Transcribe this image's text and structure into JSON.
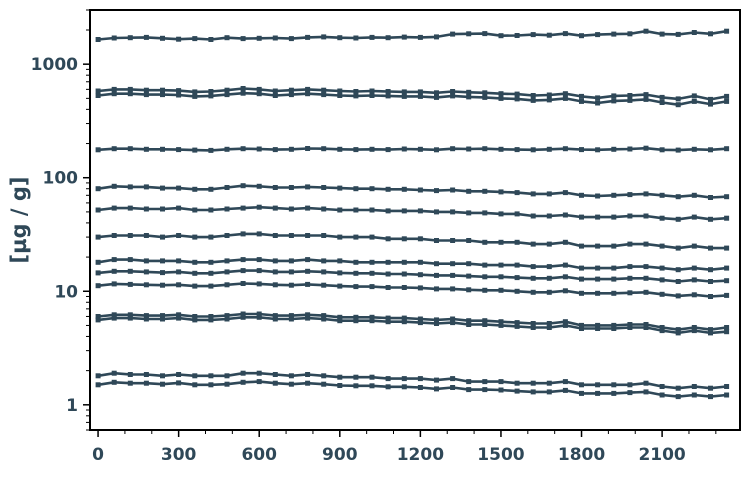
{
  "chart_data": {
    "type": "line",
    "ylabel": "[µg / g]",
    "xlabel": "",
    "title": "",
    "y_scale": "log",
    "xlim": [
      -30,
      2390
    ],
    "ylim": [
      0.6,
      3000
    ],
    "xticks": [
      0,
      300,
      600,
      900,
      1200,
      1500,
      1800,
      2100
    ],
    "yticks": [
      1,
      10,
      100,
      1000
    ],
    "grid": false,
    "legend": "none",
    "colors": {
      "series": "#2f4858",
      "axis": "#000000",
      "text": "#2f4858"
    },
    "x": [
      0,
      60,
      120,
      180,
      240,
      300,
      360,
      420,
      480,
      540,
      600,
      660,
      720,
      780,
      840,
      900,
      960,
      1020,
      1080,
      1140,
      1200,
      1260,
      1320,
      1380,
      1440,
      1500,
      1560,
      1620,
      1680,
      1740,
      1800,
      1860,
      1920,
      1980,
      2040,
      2100,
      2160,
      2220,
      2280,
      2340
    ],
    "series": [
      {
        "values": [
          1650,
          1700,
          1710,
          1720,
          1690,
          1660,
          1680,
          1650,
          1710,
          1680,
          1690,
          1700,
          1680,
          1720,
          1740,
          1710,
          1700,
          1720,
          1710,
          1730,
          1720,
          1740,
          1840,
          1850,
          1860,
          1780,
          1790,
          1820,
          1800,
          1860,
          1780,
          1820,
          1840,
          1850,
          1950,
          1840,
          1830,
          1900,
          1850,
          1950
        ]
      },
      {
        "values": [
          580,
          600,
          600,
          590,
          590,
          585,
          570,
          575,
          590,
          610,
          600,
          580,
          590,
          600,
          590,
          580,
          575,
          580,
          575,
          570,
          570,
          560,
          575,
          565,
          560,
          550,
          545,
          530,
          535,
          550,
          520,
          505,
          525,
          530,
          540,
          510,
          495,
          525,
          490,
          520
        ]
      },
      {
        "values": [
          530,
          550,
          550,
          540,
          540,
          535,
          520,
          525,
          540,
          555,
          550,
          530,
          540,
          550,
          540,
          530,
          525,
          530,
          525,
          520,
          520,
          510,
          525,
          515,
          510,
          500,
          495,
          480,
          485,
          500,
          470,
          455,
          475,
          480,
          490,
          460,
          440,
          470,
          445,
          470
        ]
      },
      {
        "values": [
          176,
          180,
          180,
          178,
          178,
          177,
          175,
          174,
          178,
          180,
          179,
          177,
          178,
          181,
          180,
          178,
          177,
          178,
          177,
          179,
          178,
          176,
          180,
          179,
          180,
          178,
          177,
          176,
          178,
          180,
          177,
          176,
          178,
          179,
          182,
          176,
          175,
          178,
          176,
          180
        ]
      },
      {
        "values": [
          80,
          84,
          83,
          83,
          81,
          81,
          79,
          79,
          82,
          85,
          84,
          82,
          82,
          83,
          82,
          81,
          80,
          80,
          79,
          79,
          78,
          77,
          78,
          76,
          76,
          75,
          74,
          72,
          72,
          74,
          70,
          69,
          70,
          71,
          72,
          70,
          68,
          70,
          67,
          68
        ]
      },
      {
        "values": [
          52,
          54,
          54,
          53,
          53,
          54,
          52,
          52,
          53,
          54,
          55,
          54,
          53,
          54,
          53,
          52,
          52,
          52,
          51,
          51,
          51,
          50,
          50,
          49,
          49,
          48,
          48,
          46,
          46,
          47,
          45,
          45,
          45,
          46,
          46,
          44,
          43,
          45,
          43,
          44
        ]
      },
      {
        "values": [
          30,
          31,
          31,
          31,
          30,
          31,
          30,
          30,
          31,
          32,
          32,
          31,
          31,
          31,
          31,
          30,
          30,
          30,
          29,
          29,
          29,
          28,
          28,
          28,
          27,
          27,
          27,
          26,
          26,
          27,
          25,
          25,
          25,
          26,
          26,
          25,
          24,
          25,
          24,
          24
        ]
      },
      {
        "values": [
          18,
          19,
          19,
          18.5,
          18.5,
          18.5,
          18,
          18,
          18.5,
          19,
          19,
          18.5,
          18.5,
          19,
          18.5,
          18.5,
          18,
          18,
          18,
          18,
          18,
          17.5,
          17.5,
          17.5,
          17,
          17,
          17,
          16.5,
          16.5,
          17,
          16,
          16,
          16,
          16.5,
          16.5,
          16,
          15.5,
          16,
          15.5,
          16
        ]
      },
      {
        "values": [
          14.5,
          15,
          15,
          14.8,
          14.6,
          14.8,
          14.4,
          14.4,
          14.8,
          15.2,
          15.2,
          14.8,
          14.8,
          15,
          14.8,
          14.5,
          14.4,
          14.4,
          14.2,
          14.2,
          14,
          13.8,
          13.8,
          13.6,
          13.4,
          13.4,
          13.2,
          13,
          13,
          13.4,
          12.8,
          12.8,
          12.8,
          13,
          13,
          12.6,
          12.2,
          12.6,
          12.2,
          12.4
        ]
      },
      {
        "values": [
          11.2,
          11.6,
          11.5,
          11.4,
          11.3,
          11.4,
          11.1,
          11.1,
          11.4,
          11.7,
          11.6,
          11.4,
          11.3,
          11.5,
          11.3,
          11.1,
          11,
          11,
          10.8,
          10.8,
          10.7,
          10.5,
          10.5,
          10.3,
          10.2,
          10.2,
          10,
          9.8,
          9.8,
          10.1,
          9.6,
          9.6,
          9.6,
          9.7,
          9.8,
          9.4,
          9.1,
          9.3,
          9,
          9.2
        ]
      },
      {
        "values": [
          6,
          6.2,
          6.2,
          6.1,
          6.1,
          6.2,
          6,
          6,
          6.1,
          6.3,
          6.3,
          6.1,
          6.1,
          6.2,
          6.1,
          5.9,
          5.9,
          5.9,
          5.8,
          5.8,
          5.7,
          5.6,
          5.7,
          5.5,
          5.5,
          5.4,
          5.3,
          5.2,
          5.2,
          5.4,
          5,
          5,
          5,
          5.1,
          5.1,
          4.8,
          4.6,
          4.8,
          4.6,
          4.8
        ]
      },
      {
        "values": [
          5.6,
          5.8,
          5.8,
          5.7,
          5.7,
          5.8,
          5.6,
          5.6,
          5.7,
          5.9,
          5.9,
          5.7,
          5.7,
          5.8,
          5.7,
          5.5,
          5.5,
          5.5,
          5.4,
          5.4,
          5.3,
          5.2,
          5.3,
          5.1,
          5.1,
          5,
          4.9,
          4.8,
          4.8,
          5,
          4.7,
          4.7,
          4.7,
          4.8,
          4.8,
          4.5,
          4.3,
          4.5,
          4.3,
          4.4
        ]
      },
      {
        "values": [
          1.8,
          1.9,
          1.85,
          1.85,
          1.8,
          1.85,
          1.8,
          1.8,
          1.8,
          1.9,
          1.9,
          1.85,
          1.8,
          1.85,
          1.8,
          1.75,
          1.75,
          1.75,
          1.7,
          1.7,
          1.7,
          1.65,
          1.7,
          1.6,
          1.6,
          1.6,
          1.55,
          1.55,
          1.55,
          1.6,
          1.5,
          1.5,
          1.5,
          1.5,
          1.55,
          1.45,
          1.4,
          1.45,
          1.4,
          1.45
        ]
      },
      {
        "values": [
          1.5,
          1.58,
          1.55,
          1.55,
          1.52,
          1.56,
          1.5,
          1.5,
          1.52,
          1.58,
          1.6,
          1.55,
          1.52,
          1.55,
          1.52,
          1.48,
          1.47,
          1.47,
          1.44,
          1.44,
          1.42,
          1.38,
          1.42,
          1.36,
          1.36,
          1.35,
          1.32,
          1.3,
          1.3,
          1.34,
          1.26,
          1.26,
          1.26,
          1.28,
          1.3,
          1.22,
          1.18,
          1.22,
          1.18,
          1.22
        ]
      }
    ]
  }
}
